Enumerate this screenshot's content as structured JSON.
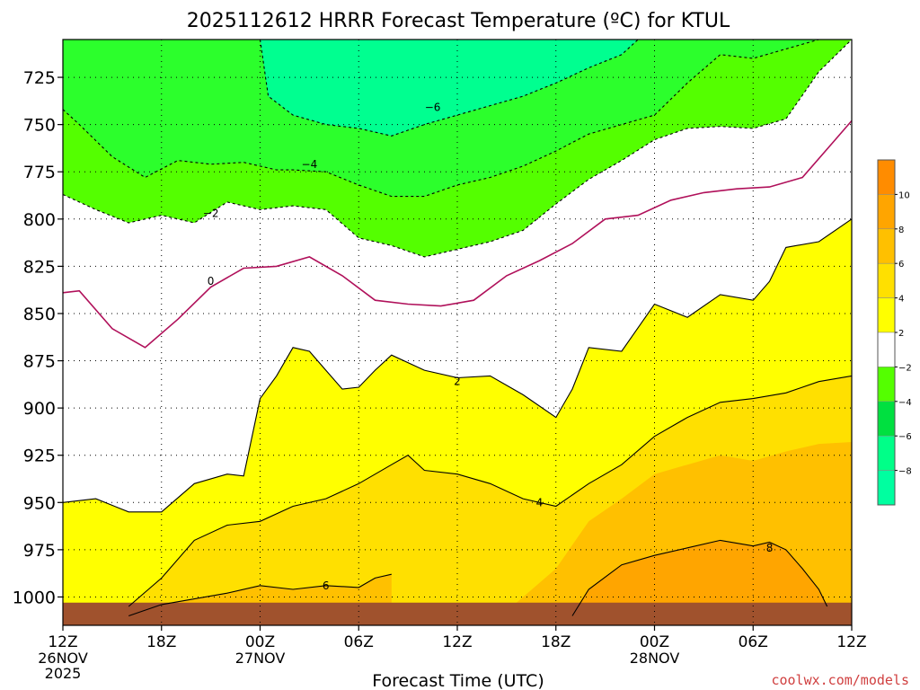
{
  "chart_data": {
    "type": "contour",
    "title": "2025112612 HRRR Forecast Temperature (ºC) for KTUL",
    "xlabel": "Forecast Time (UTC)",
    "ylabel": "",
    "y_axis": {
      "reversed": true,
      "ticks": [
        725,
        750,
        775,
        800,
        825,
        850,
        875,
        900,
        925,
        950,
        975,
        1000
      ],
      "ylim": [
        1015,
        705
      ]
    },
    "x_axis": {
      "range_hours": [
        0,
        48
      ],
      "ticks": [
        {
          "hour": 0,
          "label": "12Z",
          "sub": "26NOV",
          "sub2": "2025"
        },
        {
          "hour": 6,
          "label": "18Z",
          "sub": "",
          "sub2": ""
        },
        {
          "hour": 12,
          "label": "00Z",
          "sub": "27NOV",
          "sub2": ""
        },
        {
          "hour": 18,
          "label": "06Z",
          "sub": "",
          "sub2": ""
        },
        {
          "hour": 24,
          "label": "12Z",
          "sub": "",
          "sub2": ""
        },
        {
          "hour": 30,
          "label": "18Z",
          "sub": "",
          "sub2": ""
        },
        {
          "hour": 36,
          "label": "00Z",
          "sub": "28NOV",
          "sub2": ""
        },
        {
          "hour": 42,
          "label": "06Z",
          "sub": "",
          "sub2": ""
        },
        {
          "hour": 48,
          "label": "12Z",
          "sub": "",
          "sub2": ""
        }
      ]
    },
    "grid": true,
    "legend": {
      "placement": "right",
      "labels": [
        "10",
        "8",
        "6",
        "4",
        "2",
        "−2",
        "−4",
        "−6",
        "−8"
      ],
      "colors": [
        "#ff8c00",
        "#ffa500",
        "#ffc000",
        "#ffe000",
        "#ffff00",
        "#ffffff",
        "#54ff00",
        "#00e040",
        "#00ff88",
        "#00ffa0"
      ]
    },
    "fill_colors": {
      "c_m8_m6": "#00ff90",
      "c_m6_m4": "#2cff2c",
      "c_m4_m2": "#54ff00",
      "c_m2_2": "#ffffff",
      "c_2_4": "#ffff00",
      "c_4_6": "#ffe000",
      "c_6_8": "#ffc000",
      "c_8_10": "#ffa500",
      "c_10_12": "#ff8c00",
      "ground": "#a0522d"
    },
    "contours": [
      {
        "level": -6,
        "label": "−6",
        "label_at": [
          22.5,
          741
        ],
        "points": [
          [
            12,
            705
          ],
          [
            12.5,
            735
          ],
          [
            14,
            745
          ],
          [
            16,
            750
          ],
          [
            18,
            752
          ],
          [
            20,
            756
          ],
          [
            22,
            750
          ],
          [
            24,
            745
          ],
          [
            26,
            740
          ],
          [
            28,
            735
          ],
          [
            30,
            728
          ],
          [
            32,
            720
          ],
          [
            34,
            713
          ],
          [
            35,
            705
          ]
        ]
      },
      {
        "level": -4,
        "label": "−4",
        "label_at": [
          15,
          771
        ],
        "points": [
          [
            0,
            742
          ],
          [
            1,
            750
          ],
          [
            3,
            767
          ],
          [
            5,
            778
          ],
          [
            7,
            769
          ],
          [
            9,
            771
          ],
          [
            11,
            770
          ],
          [
            12,
            772
          ],
          [
            13,
            774
          ],
          [
            14,
            774
          ],
          [
            16,
            775
          ],
          [
            18,
            782
          ],
          [
            20,
            788
          ],
          [
            22,
            788
          ],
          [
            24,
            782
          ],
          [
            26,
            778
          ],
          [
            28,
            772
          ],
          [
            30,
            764
          ],
          [
            32,
            755
          ],
          [
            34,
            750
          ],
          [
            36,
            745
          ],
          [
            38,
            728
          ],
          [
            40,
            713
          ],
          [
            42,
            715
          ],
          [
            44,
            710
          ],
          [
            46,
            705
          ]
        ]
      },
      {
        "level": -2,
        "label": "−2",
        "label_at": [
          9,
          797
        ],
        "points": [
          [
            0,
            787
          ],
          [
            2,
            795
          ],
          [
            4,
            802
          ],
          [
            6,
            798
          ],
          [
            8,
            802
          ],
          [
            10,
            791
          ],
          [
            12,
            795
          ],
          [
            14,
            793
          ],
          [
            16,
            795
          ],
          [
            18,
            810
          ],
          [
            20,
            814
          ],
          [
            22,
            820
          ],
          [
            24,
            816
          ],
          [
            26,
            812
          ],
          [
            28,
            806
          ],
          [
            30,
            792
          ],
          [
            32,
            779
          ],
          [
            34,
            769
          ],
          [
            36,
            758
          ],
          [
            38,
            752
          ],
          [
            40,
            751
          ],
          [
            42,
            752
          ],
          [
            44,
            747
          ],
          [
            46,
            722
          ],
          [
            48,
            705
          ]
        ]
      },
      {
        "level": 0,
        "label": "0",
        "label_at": [
          9,
          833
        ],
        "points": [
          [
            0,
            839
          ],
          [
            1,
            838
          ],
          [
            3,
            858
          ],
          [
            5,
            868
          ],
          [
            7,
            853
          ],
          [
            9,
            836
          ],
          [
            11,
            826
          ],
          [
            13,
            825
          ],
          [
            15,
            820
          ],
          [
            17,
            830
          ],
          [
            19,
            843
          ],
          [
            21,
            845
          ],
          [
            23,
            846
          ],
          [
            25,
            843
          ],
          [
            27,
            830
          ],
          [
            29,
            822
          ],
          [
            31,
            813
          ],
          [
            33,
            800
          ],
          [
            35,
            798
          ],
          [
            37,
            790
          ],
          [
            39,
            786
          ],
          [
            41,
            784
          ],
          [
            43,
            783
          ],
          [
            45,
            778
          ],
          [
            47,
            758
          ],
          [
            48,
            748
          ]
        ]
      },
      {
        "level": 2,
        "label": "2",
        "label_at": [
          24,
          886
        ],
        "points": [
          [
            0,
            950
          ],
          [
            2,
            948
          ],
          [
            4,
            955
          ],
          [
            6,
            955
          ],
          [
            8,
            940
          ],
          [
            10,
            935
          ],
          [
            11,
            936
          ],
          [
            12,
            895
          ],
          [
            13,
            883
          ],
          [
            14,
            868
          ],
          [
            15,
            870
          ],
          [
            16,
            880
          ],
          [
            17,
            890
          ],
          [
            18,
            889
          ],
          [
            19,
            880
          ],
          [
            20,
            872
          ],
          [
            22,
            880
          ],
          [
            24,
            884
          ],
          [
            26,
            883
          ],
          [
            28,
            893
          ],
          [
            30,
            905
          ],
          [
            31,
            890
          ],
          [
            32,
            868
          ],
          [
            34,
            870
          ],
          [
            36,
            845
          ],
          [
            38,
            852
          ],
          [
            40,
            840
          ],
          [
            42,
            843
          ],
          [
            43,
            833
          ],
          [
            44,
            815
          ],
          [
            46,
            812
          ],
          [
            48,
            800
          ]
        ]
      },
      {
        "level": 4,
        "label": "4",
        "label_at": [
          29,
          950
        ],
        "points": [
          [
            4,
            1005
          ],
          [
            6,
            990
          ],
          [
            8,
            970
          ],
          [
            10,
            962
          ],
          [
            12,
            960
          ],
          [
            14,
            952
          ],
          [
            16,
            948
          ],
          [
            18,
            940
          ],
          [
            20,
            930
          ],
          [
            21,
            925
          ],
          [
            22,
            933
          ],
          [
            24,
            935
          ],
          [
            26,
            940
          ],
          [
            28,
            948
          ],
          [
            30,
            952
          ],
          [
            32,
            940
          ],
          [
            34,
            930
          ],
          [
            36,
            915
          ],
          [
            38,
            905
          ],
          [
            40,
            897
          ],
          [
            42,
            895
          ],
          [
            44,
            892
          ],
          [
            46,
            886
          ],
          [
            48,
            883
          ]
        ]
      },
      {
        "level": 6,
        "label": "6",
        "label_at": [
          16,
          994
        ],
        "points": [
          [
            4,
            1010
          ],
          [
            6,
            1004
          ],
          [
            8,
            1001
          ],
          [
            10,
            998
          ],
          [
            12,
            994
          ],
          [
            14,
            996
          ],
          [
            16,
            994
          ],
          [
            18,
            995
          ],
          [
            19,
            990
          ],
          [
            20,
            988
          ]
        ]
      },
      {
        "level": 8,
        "label": "8",
        "label_at": [
          43,
          974
        ],
        "points": [
          [
            31,
            1010
          ],
          [
            32,
            996
          ],
          [
            34,
            983
          ],
          [
            36,
            978
          ],
          [
            38,
            974
          ],
          [
            40,
            970
          ],
          [
            42,
            973
          ],
          [
            43,
            971
          ],
          [
            44,
            975
          ],
          [
            45,
            985
          ],
          [
            46,
            996
          ],
          [
            46.5,
            1005
          ]
        ]
      }
    ]
  },
  "footer": {
    "credit": "coolwx.com/models"
  }
}
